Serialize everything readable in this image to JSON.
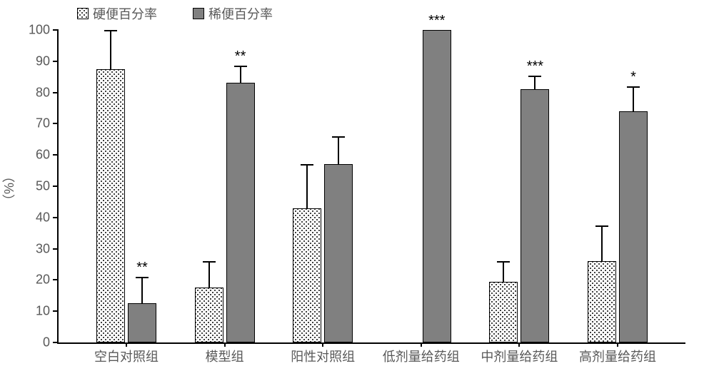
{
  "chart": {
    "type": "grouped-bar",
    "background_color": "#ffffff",
    "yaxis_title": "（%）",
    "label_fontsize": 18,
    "label_color": "#595959",
    "sig_fontsize": 20,
    "ylim": [
      0,
      100
    ],
    "ytick_step": 10,
    "bar_border_color": "#000000",
    "error_bar_color": "#000000",
    "legend": {
      "items": [
        {
          "label": "硬便百分率",
          "fill": "dots"
        },
        {
          "label": "稀便百分率",
          "fill": "solid"
        }
      ]
    },
    "fills": {
      "dots": {
        "bg": "#ffffff",
        "dot_color": "#404040"
      },
      "solid": {
        "bg": "#808080"
      }
    },
    "categories": [
      {
        "name": "空白对照组",
        "bars": [
          {
            "series": 0,
            "value": 87.5,
            "err": 12.5,
            "sig": ""
          },
          {
            "series": 1,
            "value": 12.5,
            "err": 8.5,
            "sig": "**"
          }
        ]
      },
      {
        "name": "模型组",
        "bars": [
          {
            "series": 0,
            "value": 17.5,
            "err": 8.5,
            "sig": ""
          },
          {
            "series": 1,
            "value": 83.0,
            "err": 5.5,
            "sig": "**"
          }
        ]
      },
      {
        "name": "阳性对照组",
        "bars": [
          {
            "series": 0,
            "value": 43.0,
            "err": 14.0,
            "sig": ""
          },
          {
            "series": 1,
            "value": 57.0,
            "err": 9.0,
            "sig": ""
          }
        ]
      },
      {
        "name": "低剂量给药组",
        "bars": [
          {
            "series": 0,
            "value": 0.0,
            "err": 0.0,
            "sig": ""
          },
          {
            "series": 1,
            "value": 100.0,
            "err": 0.0,
            "sig": "***"
          }
        ]
      },
      {
        "name": "中剂量给药组",
        "bars": [
          {
            "series": 0,
            "value": 19.5,
            "err": 6.5,
            "sig": ""
          },
          {
            "series": 1,
            "value": 81.0,
            "err": 4.5,
            "sig": "***"
          }
        ]
      },
      {
        "name": "高剂量给药组",
        "bars": [
          {
            "series": 0,
            "value": 26.0,
            "err": 11.5,
            "sig": ""
          },
          {
            "series": 1,
            "value": 74.0,
            "err": 8.0,
            "sig": "*"
          }
        ]
      }
    ]
  }
}
